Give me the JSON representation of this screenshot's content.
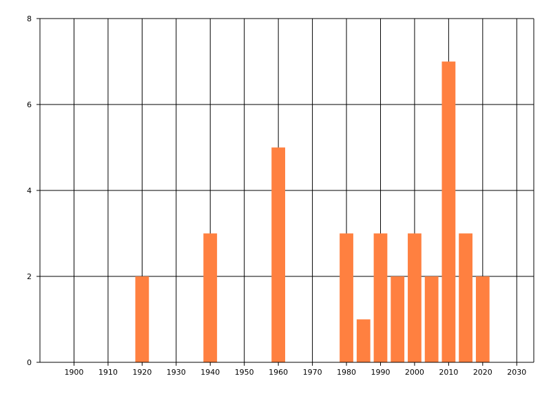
{
  "chart_data": {
    "type": "bar",
    "x": [
      1920,
      1940,
      1960,
      1980,
      1985,
      1990,
      1995,
      2000,
      2005,
      2010,
      2015,
      2020
    ],
    "values": [
      2,
      3,
      5,
      3,
      1,
      3,
      2,
      3,
      2,
      7,
      3,
      2
    ],
    "color": "#ff8040",
    "xlim": [
      1890,
      2035
    ],
    "xticks": [
      1900,
      1910,
      1920,
      1930,
      1940,
      1950,
      1960,
      1970,
      1980,
      1990,
      2000,
      2010,
      2020,
      2030
    ],
    "ylim": [
      0,
      8
    ],
    "yticks": [
      0,
      2,
      4,
      6,
      8
    ],
    "grid": true
  }
}
